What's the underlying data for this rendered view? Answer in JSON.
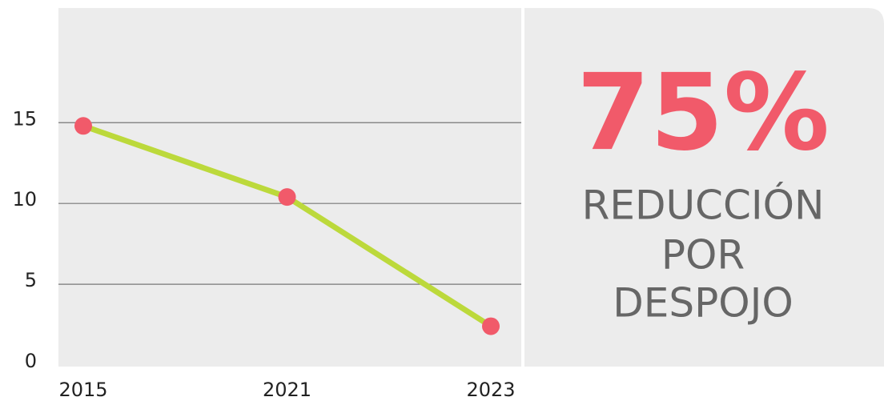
{
  "chart_data": {
    "type": "line",
    "categories": [
      "2015",
      "2021",
      "2023"
    ],
    "series": [
      {
        "color": "#bcd93b",
        "marker_color": "#f15a6a",
        "values": [
          14.8,
          10.4,
          2.4
        ]
      }
    ],
    "ylim": [
      0,
      22
    ],
    "yticks": [
      0,
      5,
      10,
      15
    ],
    "grid": true,
    "stat": {
      "value": "75%",
      "lines": [
        "REDUCCIÓN",
        "POR",
        "DESPOJO"
      ]
    }
  }
}
